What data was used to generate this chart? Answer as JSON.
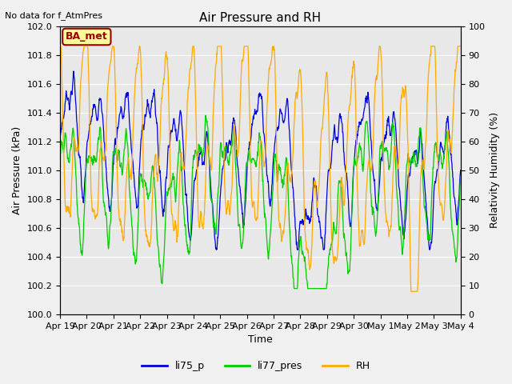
{
  "title": "Air Pressure and RH",
  "subtitle": "No data for f_AtmPres",
  "ylabel_left": "Air Pressure (kPa)",
  "ylabel_right": "Relativity Humidity (%)",
  "xlabel": "Time",
  "ylim_left": [
    100.0,
    102.0
  ],
  "ylim_right": [
    0,
    100
  ],
  "yticks_left": [
    100.0,
    100.2,
    100.4,
    100.6,
    100.8,
    101.0,
    101.2,
    101.4,
    101.6,
    101.8,
    102.0
  ],
  "yticks_right": [
    0,
    10,
    20,
    30,
    40,
    50,
    60,
    70,
    80,
    90,
    100
  ],
  "xtick_labels": [
    "Apr 19",
    "Apr 20",
    "Apr 21",
    "Apr 22",
    "Apr 23",
    "Apr 24",
    "Apr 25",
    "Apr 26",
    "Apr 27",
    "Apr 28",
    "Apr 29",
    "Apr 30",
    "May 1",
    "May 2",
    "May 3",
    "May 4"
  ],
  "legend_labels": [
    "li75_p",
    "li77_pres",
    "RH"
  ],
  "line_colors": [
    "#0000dd",
    "#00cc00",
    "#ffaa00"
  ],
  "ba_met_box_color": "#990000",
  "ba_met_bg_color": "#ffff99",
  "fig_facecolor": "#f0f0f0",
  "plot_bg_color": "#e8e8e8",
  "grid_color": "#ffffff",
  "title_fontsize": 11,
  "subtitle_fontsize": 8,
  "axis_label_fontsize": 9,
  "tick_fontsize": 8,
  "legend_fontsize": 9
}
